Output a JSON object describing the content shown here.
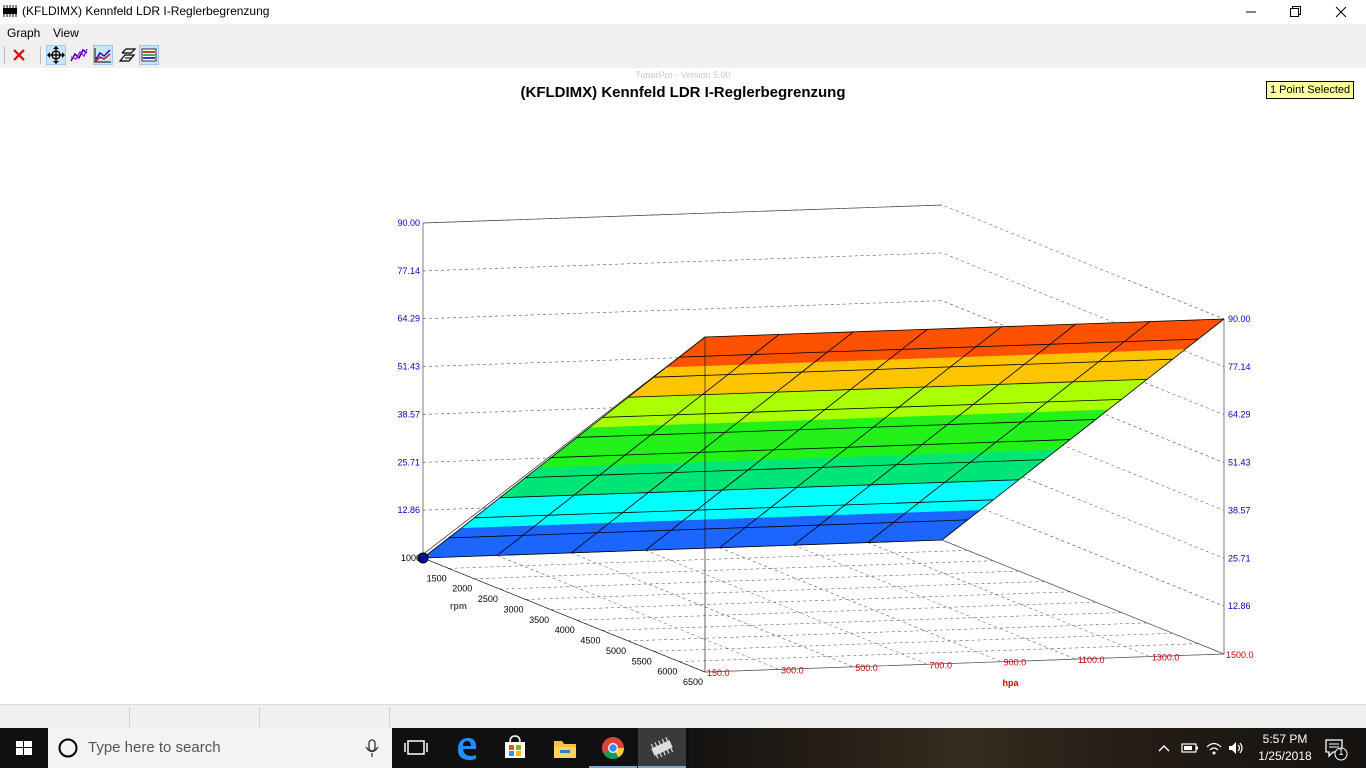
{
  "window": {
    "title": "(KFLDIMX) Kennfeld LDR I-Reglerbegrenzung"
  },
  "menu": {
    "items": [
      "Graph",
      "View"
    ]
  },
  "toolbar": {
    "buttons": [
      "close-graph-icon",
      "move-icon",
      "line-graph-icon",
      "3d-graph-icon",
      "surface-icon",
      "table-icon"
    ]
  },
  "graph": {
    "version_text": "TunerPro - Version 5.00",
    "selection_badge": "1 Point Selected"
  },
  "chart_data": {
    "type": "surface-3d",
    "title": "(KFLDIMX) Kennfeld LDR I-Reglerbegrenzung",
    "xlabel": "rpm",
    "ylabel": "hpa",
    "x_ticks": [
      "1000",
      "1500",
      "2000",
      "2500",
      "3000",
      "3500",
      "4000",
      "4500",
      "5000",
      "5500",
      "6000",
      "6500"
    ],
    "y_ticks": [
      "150.0",
      "300.0",
      "500.0",
      "700.0",
      "900.0",
      "1100.0",
      "1300.0",
      "1500.0"
    ],
    "z_ticks": [
      "12.86",
      "25.71",
      "38.57",
      "51.43",
      "64.29",
      "77.14",
      "90.00"
    ],
    "z_range": [
      0,
      90
    ],
    "x_axis_color": "#000000",
    "y_axis_color": "#cc0000",
    "z_axis_color": "#0000cc",
    "band_colors": [
      "#1a66ff",
      "#00ffff",
      "#00e676",
      "#22f21a",
      "#aaff00",
      "#ffc400",
      "#ff5200"
    ],
    "grid": true,
    "selected_point": {
      "rpm": 1000,
      "hpa": 150.0
    }
  },
  "statusbar": {
    "panes": [
      "",
      "",
      "",
      ""
    ]
  },
  "taskbar": {
    "search_placeholder": "Type here to search",
    "time": "5:57 PM",
    "date": "1/25/2018",
    "notification_count": "1",
    "pinned": [
      "task-view-icon",
      "edge-icon",
      "store-icon",
      "file-explorer-icon",
      "chrome-icon",
      "tunerpro-icon"
    ]
  }
}
